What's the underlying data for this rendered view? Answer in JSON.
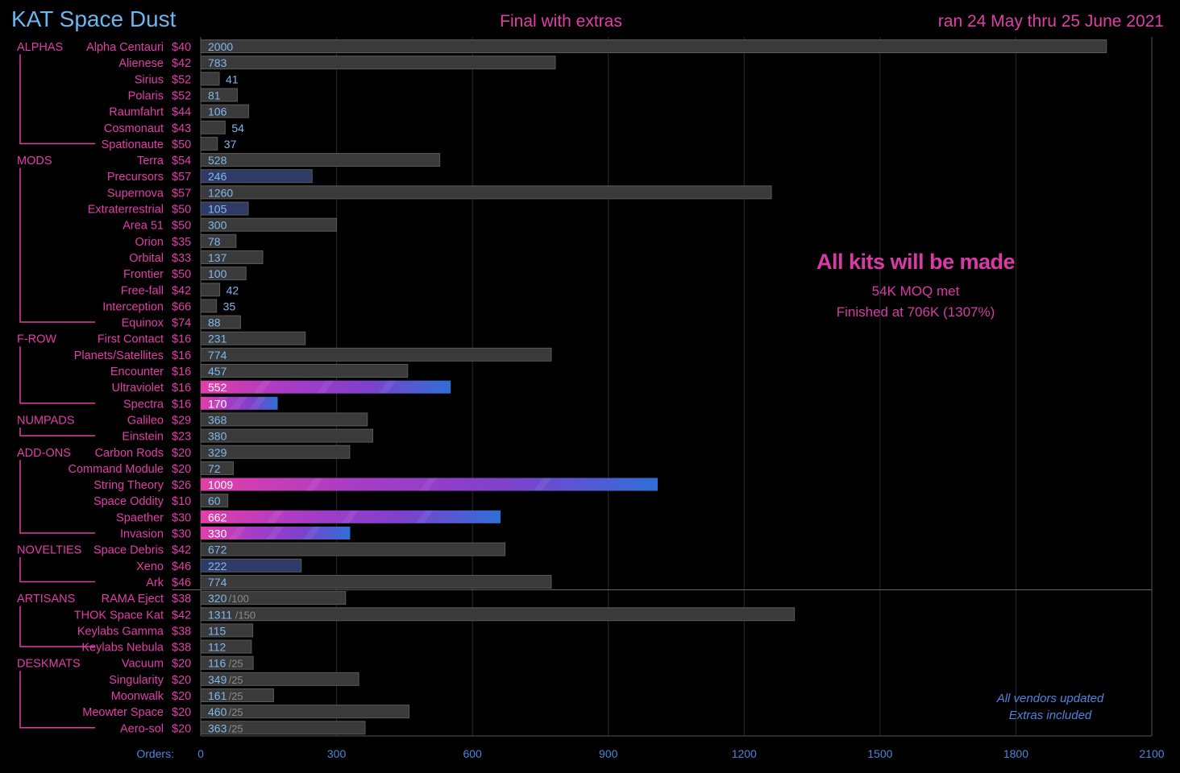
{
  "chart_data": {
    "type": "bar",
    "orientation": "horizontal",
    "title": "KAT Space Dust",
    "subtitle": "Final with extras",
    "date_range": "ran 24 May thru 25 June 2021",
    "xlabel": "Orders:",
    "xlim": [
      0,
      2100
    ],
    "xticks": [
      0,
      300,
      600,
      900,
      1200,
      1500,
      1800,
      2100
    ],
    "grid": true,
    "annotation": {
      "headline": "All kits will be made",
      "line1": "54K MOQ met",
      "line2": "Finished at 706K (1307%)"
    },
    "footnote": {
      "line1": "All vendors updated",
      "line2": "Extras included"
    },
    "colors": {
      "title": "#6cb6f0",
      "label": "#e23ea8",
      "axis": "#4b86dc",
      "bar": "#3a3a3a",
      "bar_navy": "#2f3a66",
      "value": "#7fb8ee",
      "gradient": [
        "#e23ea8",
        "#a93cc6",
        "#7f40cc",
        "#2f6fd6"
      ]
    },
    "groups": [
      {
        "name": "ALPHAS",
        "items": [
          {
            "label": "Alpha Centauri",
            "price": "$40",
            "value": 2000
          },
          {
            "label": "Alienese",
            "price": "$42",
            "value": 783
          },
          {
            "label": "Sirius",
            "price": "$52",
            "value": 41
          },
          {
            "label": "Polaris",
            "price": "$52",
            "value": 81
          },
          {
            "label": "Raumfahrt",
            "price": "$44",
            "value": 106
          },
          {
            "label": "Cosmonaut",
            "price": "$43",
            "value": 54
          },
          {
            "label": "Spationaute",
            "price": "$50",
            "value": 37
          }
        ]
      },
      {
        "name": "MODS",
        "items": [
          {
            "label": "Terra",
            "price": "$54",
            "value": 528
          },
          {
            "label": "Precursors",
            "price": "$57",
            "value": 246,
            "style": "navy"
          },
          {
            "label": "Supernova",
            "price": "$57",
            "value": 1260
          },
          {
            "label": "Extraterrestrial",
            "price": "$50",
            "value": 105,
            "style": "navy"
          },
          {
            "label": "Area 51",
            "price": "$50",
            "value": 300
          },
          {
            "label": "Orion",
            "price": "$35",
            "value": 78
          },
          {
            "label": "Orbital",
            "price": "$33",
            "value": 137
          },
          {
            "label": "Frontier",
            "price": "$50",
            "value": 100
          },
          {
            "label": "Free-fall",
            "price": "$42",
            "value": 42
          },
          {
            "label": "Interception",
            "price": "$66",
            "value": 35
          },
          {
            "label": "Equinox",
            "price": "$74",
            "value": 88
          }
        ]
      },
      {
        "name": "F-ROW",
        "items": [
          {
            "label": "First Contact",
            "price": "$16",
            "value": 231
          },
          {
            "label": "Planets/Satellites",
            "price": "$16",
            "value": 774
          },
          {
            "label": "Encounter",
            "price": "$16",
            "value": 457
          },
          {
            "label": "Ultraviolet",
            "price": "$16",
            "value": 552,
            "style": "gradient"
          },
          {
            "label": "Spectra",
            "price": "$16",
            "value": 170,
            "style": "gradient"
          }
        ]
      },
      {
        "name": "NUMPADS",
        "items": [
          {
            "label": "Galileo",
            "price": "$29",
            "value": 368
          },
          {
            "label": "Einstein",
            "price": "$23",
            "value": 380
          }
        ]
      },
      {
        "name": "ADD-ONS",
        "items": [
          {
            "label": "Carbon Rods",
            "price": "$20",
            "value": 329
          },
          {
            "label": "Command Module",
            "price": "$20",
            "value": 72
          },
          {
            "label": "String Theory",
            "price": "$26",
            "value": 1009,
            "style": "gradient"
          },
          {
            "label": "Space Oddity",
            "price": "$10",
            "value": 60
          },
          {
            "label": "Spaether",
            "price": "$30",
            "value": 662,
            "style": "gradient"
          },
          {
            "label": "Invasion",
            "price": "$30",
            "value": 330,
            "style": "gradient"
          }
        ]
      },
      {
        "name": "NOVELTIES",
        "items": [
          {
            "label": "Space Debris",
            "price": "$42",
            "value": 672
          },
          {
            "label": "Xeno",
            "price": "$46",
            "value": 222,
            "style": "navy"
          },
          {
            "label": "Ark",
            "price": "$46",
            "value": 774
          }
        ]
      },
      {
        "name": "ARTISANS",
        "items": [
          {
            "label": "RAMA Eject",
            "price": "$38",
            "value": 320,
            "cap": "/100"
          },
          {
            "label": "THOK Space Kat",
            "price": "$42",
            "value": 1311,
            "cap": "/150"
          },
          {
            "label": "Keylabs Gamma",
            "price": "$38",
            "value": 115
          },
          {
            "label": "Keylabs Nebula",
            "price": "$38",
            "value": 112
          }
        ]
      },
      {
        "name": "DESKMATS",
        "items": [
          {
            "label": "Vacuum",
            "price": "$20",
            "value": 116,
            "cap": "/25"
          },
          {
            "label": "Singularity",
            "price": "$20",
            "value": 349,
            "cap": "/25"
          },
          {
            "label": "Moonwalk",
            "price": "$20",
            "value": 161,
            "cap": "/25"
          },
          {
            "label": "Meowter Space",
            "price": "$20",
            "value": 460,
            "cap": "/25"
          },
          {
            "label": "Aero-sol",
            "price": "$20",
            "value": 363,
            "cap": "/25"
          }
        ]
      }
    ]
  }
}
